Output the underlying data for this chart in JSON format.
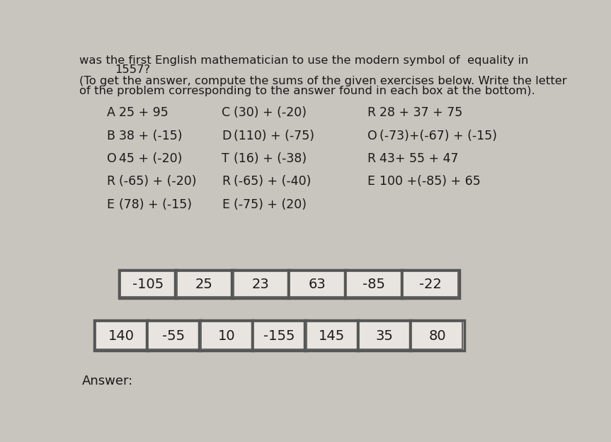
{
  "title_line1": "was the first English mathematician to use the modern symbol of  equality in",
  "title_line2": "1557?",
  "subtitle_line1": "(To get the answer, compute the sums of the given exercises below. Write the letter",
  "subtitle_line2": "of the problem corresponding to the answer found in each box at the bottom).",
  "problems": [
    {
      "col": 0,
      "row": 0,
      "letter": "A",
      "expr": "25 + 95"
    },
    {
      "col": 0,
      "row": 1,
      "letter": "B",
      "expr": "38 + (-15)"
    },
    {
      "col": 0,
      "row": 2,
      "letter": "O",
      "expr": "45 + (-20)"
    },
    {
      "col": 0,
      "row": 3,
      "letter": "R",
      "expr": "(-65) + (-20)"
    },
    {
      "col": 0,
      "row": 4,
      "letter": "E",
      "expr": "(78) + (-15)"
    },
    {
      "col": 1,
      "row": 0,
      "letter": "C",
      "expr": "(30) + (-20)"
    },
    {
      "col": 1,
      "row": 1,
      "letter": "D",
      "expr": "(110) + (-75)"
    },
    {
      "col": 1,
      "row": 2,
      "letter": "T",
      "expr": "(16) + (-38)"
    },
    {
      "col": 1,
      "row": 3,
      "letter": "R",
      "expr": "(-65) + (-40)"
    },
    {
      "col": 1,
      "row": 4,
      "letter": "E",
      "expr": "(-75) + (20)"
    },
    {
      "col": 2,
      "row": 0,
      "letter": "R",
      "expr": "28 + 37 + 75"
    },
    {
      "col": 2,
      "row": 1,
      "letter": "O",
      "expr": "(-73)+(-67) + (-15)"
    },
    {
      "col": 2,
      "row": 2,
      "letter": "R",
      "expr": "43+ 55 + 47"
    },
    {
      "col": 2,
      "row": 3,
      "letter": "E",
      "expr": "100 +(-85) + 65"
    }
  ],
  "boxes_row1": [
    "-105",
    "25",
    "23",
    "63",
    "-85",
    "-22"
  ],
  "boxes_row2": [
    "140",
    "-55",
    "10",
    "-155",
    "145",
    "35",
    "80"
  ],
  "answer_label": "Answer:",
  "bg_color": "#c8c4be",
  "text_color": "#1a1a1a",
  "box_color": "#e8e5e0",
  "box_edge_color": "#555555"
}
